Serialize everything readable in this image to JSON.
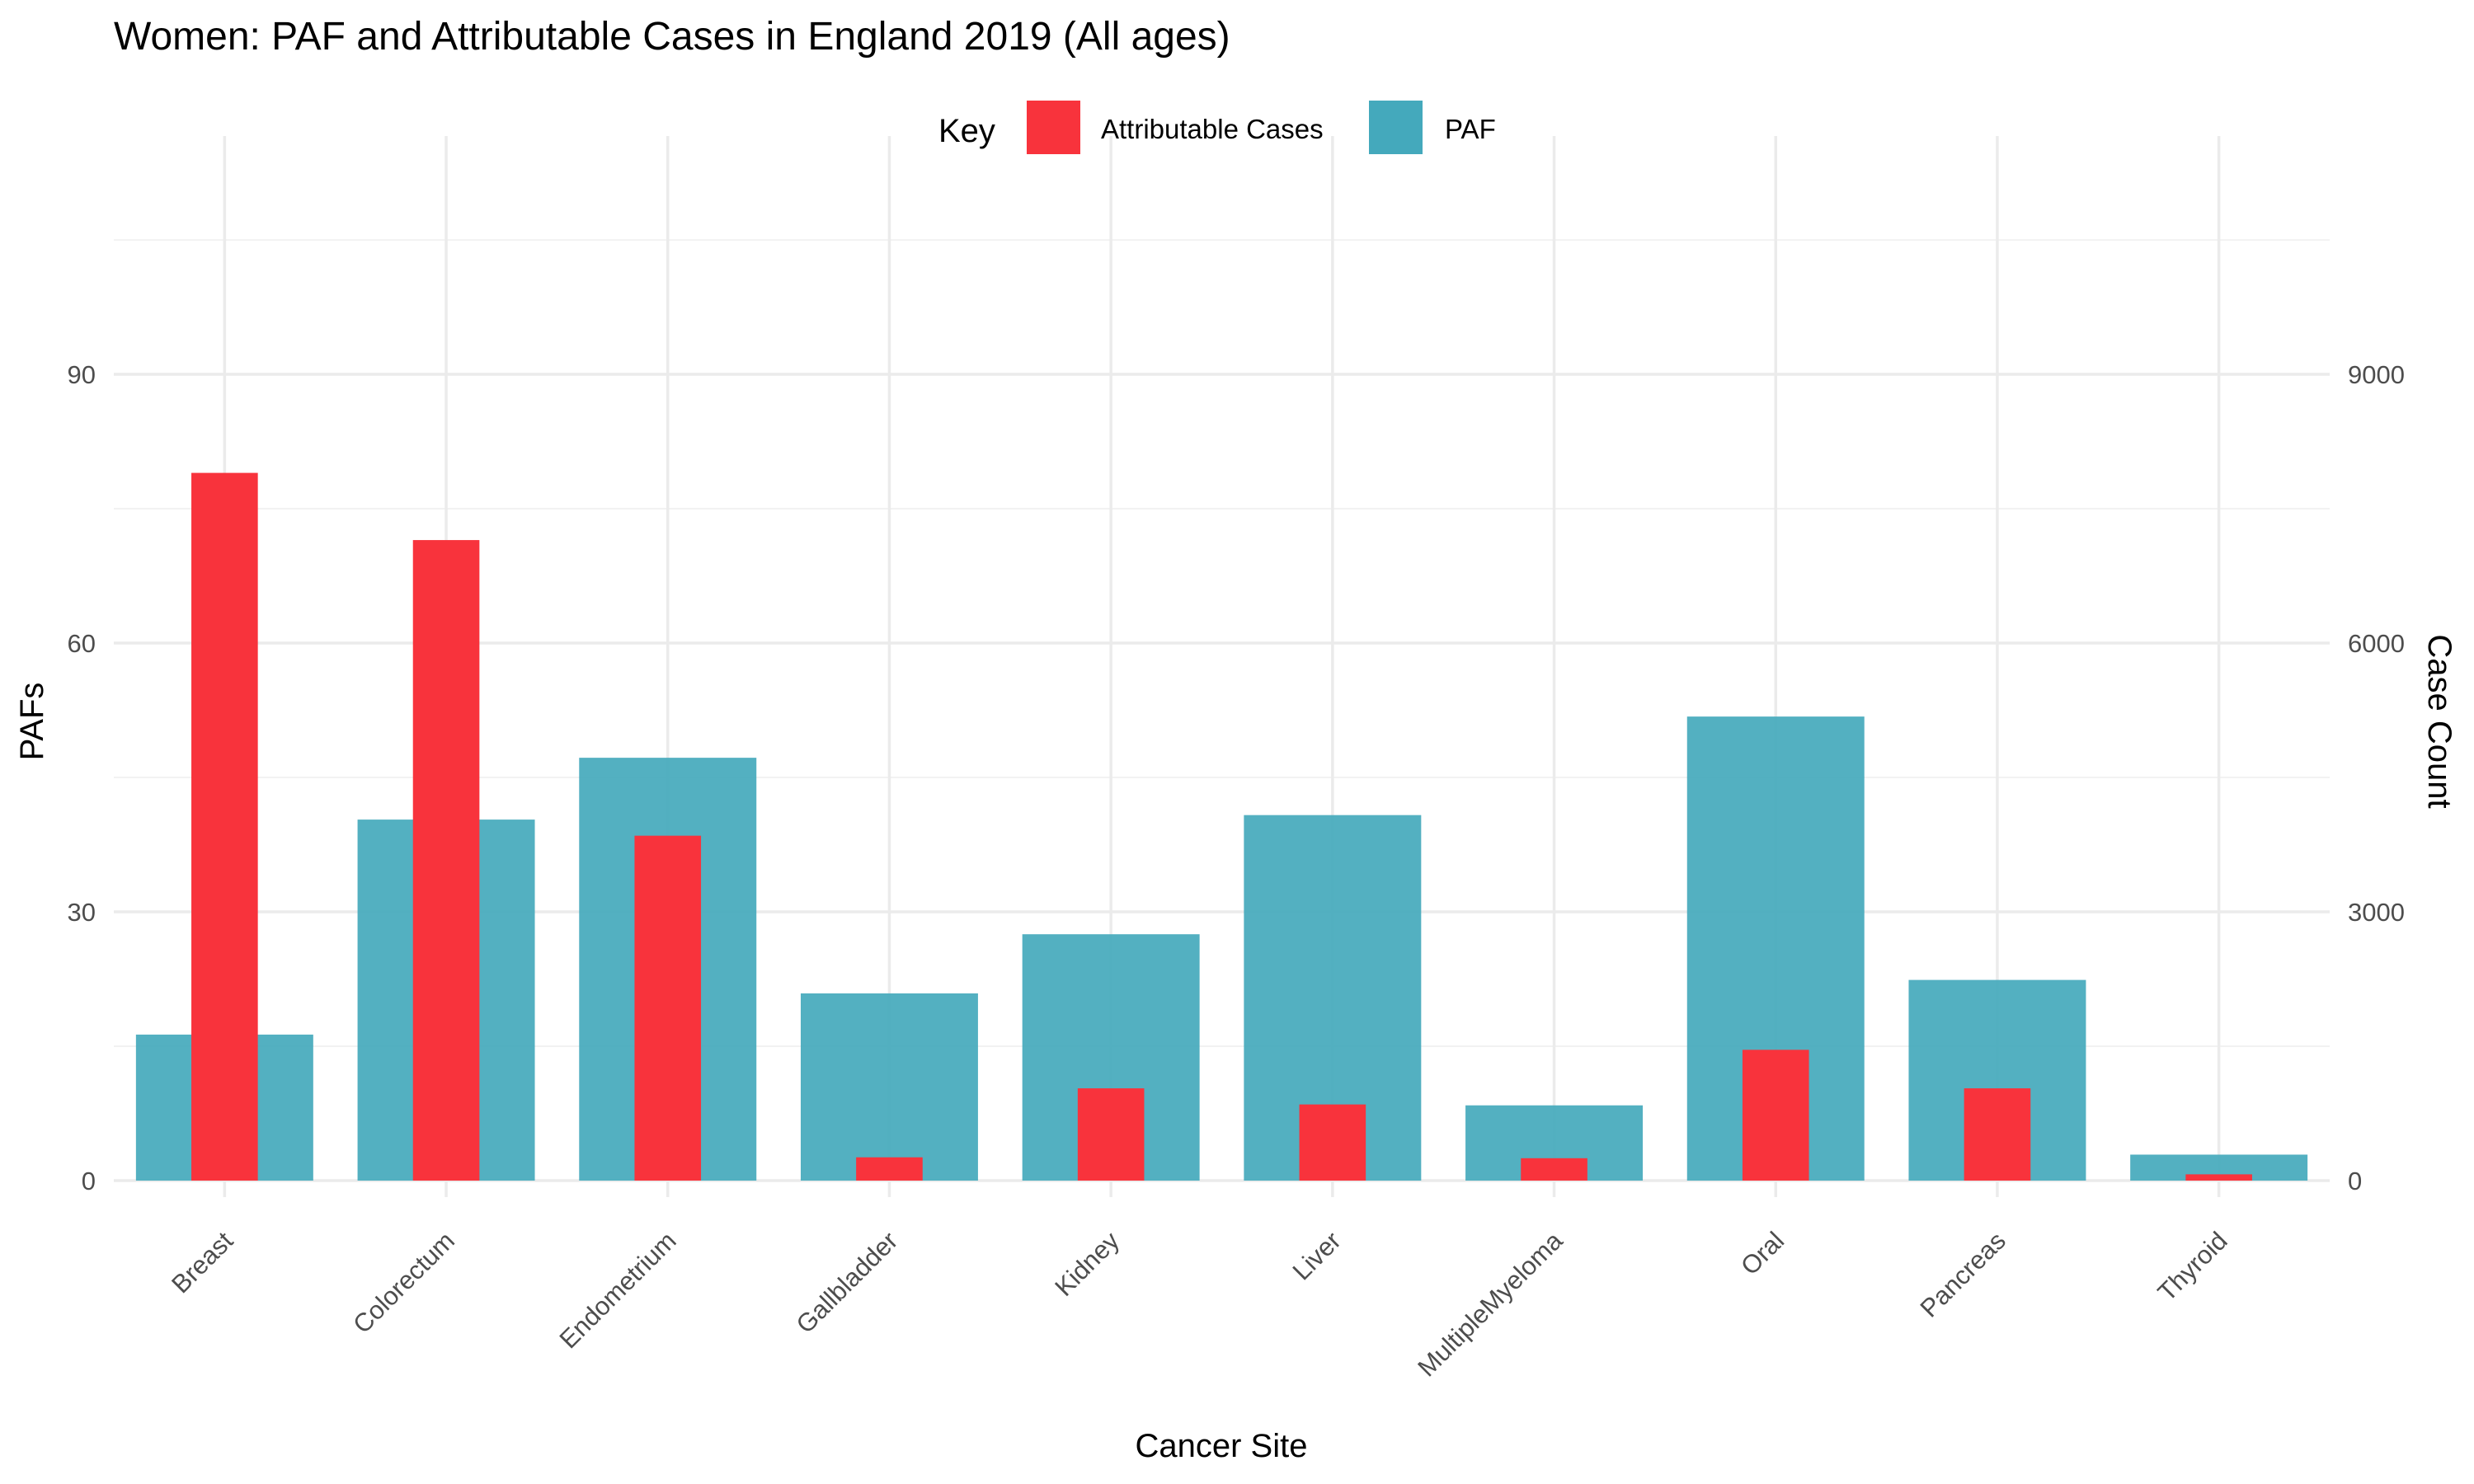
{
  "chart_data": {
    "type": "bar",
    "title": "Women: PAF and Attributable Cases in England 2019 (All ages)",
    "xlabel": "Cancer Site",
    "ylabel": "PAFs",
    "y2label": "Case Count",
    "ylim": [
      0,
      112
    ],
    "y2lim": [
      0,
      11200
    ],
    "yticks": [
      0,
      30,
      60,
      90
    ],
    "y2ticks": [
      0,
      3000,
      6000,
      9000
    ],
    "grid": true,
    "legend": {
      "title": "Key",
      "placement": "top",
      "items": [
        {
          "label": "Attributable Cases",
          "color": "#F8333C"
        },
        {
          "label": "PAF",
          "color": "#44A9BC"
        }
      ]
    },
    "categories": [
      "Breast",
      "Colorectum",
      "Endometrium",
      "Gallbladder",
      "Kidney",
      "Liver",
      "MultipleMyeloma",
      "Oral",
      "Pancreas",
      "Thyroid"
    ],
    "series": [
      {
        "name": "PAF",
        "axis": "left",
        "color": "#44A9BC",
        "values": [
          16.3,
          40.3,
          47.2,
          20.9,
          27.5,
          40.8,
          8.4,
          51.8,
          22.4,
          2.9
        ]
      },
      {
        "name": "Attributable Cases",
        "axis": "right",
        "color": "#F8333C",
        "values": [
          7900,
          7150,
          3850,
          260,
          1030,
          850,
          250,
          1460,
          1030,
          70
        ]
      }
    ]
  }
}
